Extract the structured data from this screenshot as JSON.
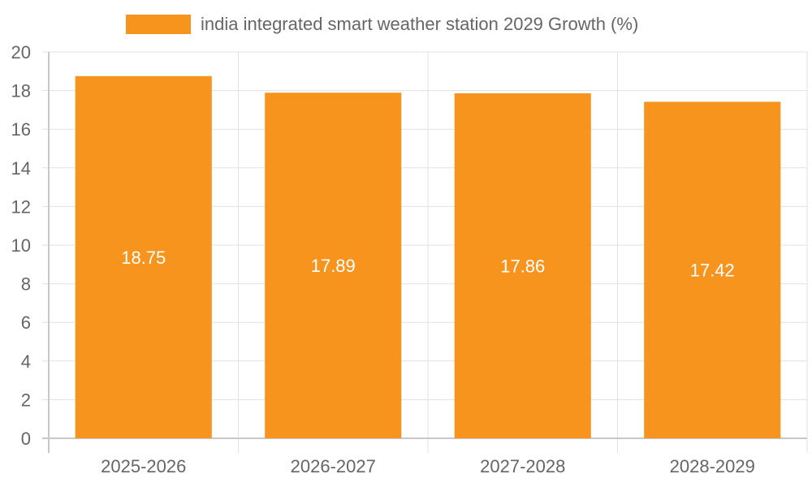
{
  "chart_data": {
    "type": "bar",
    "title": "",
    "categories": [
      "2025-2026",
      "2026-2027",
      "2027-2028",
      "2028-2029"
    ],
    "series": [
      {
        "name": "india integrated smart weather station 2029 Growth (%)",
        "values": [
          18.75,
          17.89,
          17.86,
          17.42
        ],
        "labels": [
          "18.75",
          "17.89",
          "17.86",
          "17.42"
        ],
        "color": "#f7941e"
      }
    ],
    "xlabel": "",
    "ylabel": "",
    "ylim": [
      0,
      20
    ],
    "yticks": [
      0,
      2,
      4,
      6,
      8,
      10,
      12,
      14,
      16,
      18,
      20
    ],
    "ytick_labels": [
      "0",
      "2",
      "4",
      "6",
      "8",
      "10",
      "12",
      "14",
      "16",
      "18",
      "20"
    ],
    "grid": true,
    "legend_position": "top-center"
  },
  "colors": {
    "bar": "#f7941e",
    "grid": "#e1e1e1",
    "axis": "#c8c8c8",
    "tick_text": "#666666",
    "data_label": "#ffffff"
  }
}
